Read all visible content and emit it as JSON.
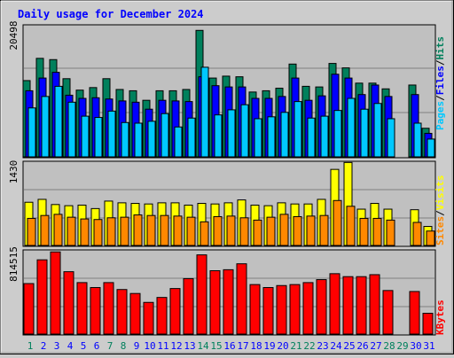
{
  "title": "Daily usage for December 2024",
  "colors": {
    "hits": "#00805c",
    "files": "#0000ff",
    "pages": "#00c8ff",
    "visits": "#ffff00",
    "sites": "#ff8800",
    "kbytes": "#ff0000",
    "weekend_label": "#00805c",
    "weekday_label": "#0000ff",
    "slash": "#000000"
  },
  "legend": {
    "pages": "Pages",
    "files": "Files",
    "hits": "Hits",
    "sites": "Sites",
    "visits": "Visits",
    "kbytes": "KBytes",
    "slash": "/"
  },
  "chart_data": [
    {
      "type": "bar",
      "title": "Daily usage for December 2024",
      "panel": "hits-files-pages",
      "max_label": "20498",
      "ylim": [
        0,
        20498
      ],
      "categories": [
        "1",
        "2",
        "3",
        "4",
        "5",
        "6",
        "7",
        "8",
        "9",
        "10",
        "11",
        "12",
        "13",
        "14",
        "15",
        "16",
        "17",
        "18",
        "19",
        "20",
        "21",
        "22",
        "23",
        "24",
        "25",
        "26",
        "27",
        "28",
        "29",
        "30",
        "31"
      ],
      "weekend": [
        1,
        7,
        8,
        14,
        15,
        21,
        22,
        28,
        29
      ],
      "series": [
        {
          "name": "Hits",
          "values": [
            12000,
            15500,
            15300,
            12300,
            10500,
            10900,
            12300,
            10600,
            10400,
            8900,
            10400,
            10400,
            10600,
            19900,
            12400,
            12700,
            12600,
            10200,
            10400,
            10800,
            14600,
            11100,
            11000,
            14700,
            14000,
            11600,
            11600,
            10700,
            0,
            11300,
            4500
          ]
        },
        {
          "name": "Files",
          "values": [
            10400,
            12400,
            13300,
            9700,
            9200,
            9300,
            9100,
            8800,
            8600,
            7500,
            8900,
            8800,
            8700,
            12600,
            11200,
            11000,
            11000,
            9200,
            9200,
            9500,
            12400,
            8900,
            9600,
            13000,
            12400,
            9800,
            11300,
            9500,
            0,
            9800,
            3700
          ]
        },
        {
          "name": "Pages",
          "values": [
            7700,
            9500,
            11100,
            8600,
            6400,
            6200,
            7200,
            5400,
            5300,
            5600,
            6800,
            4700,
            6100,
            14100,
            6600,
            7400,
            8200,
            6000,
            6300,
            7000,
            8700,
            6100,
            6400,
            7300,
            9200,
            7500,
            8400,
            6000,
            0,
            5300,
            2800
          ]
        }
      ]
    },
    {
      "type": "bar",
      "panel": "visits-sites",
      "max_label": "1430",
      "ylim": [
        0,
        1430
      ],
      "categories": [
        "1",
        "2",
        "3",
        "4",
        "5",
        "6",
        "7",
        "8",
        "9",
        "10",
        "11",
        "12",
        "13",
        "14",
        "15",
        "16",
        "17",
        "18",
        "19",
        "20",
        "21",
        "22",
        "23",
        "24",
        "25",
        "26",
        "27",
        "28",
        "29",
        "30",
        "31"
      ],
      "series": [
        {
          "name": "Visits",
          "values": [
            750,
            800,
            710,
            690,
            700,
            640,
            770,
            740,
            730,
            720,
            740,
            740,
            700,
            730,
            720,
            740,
            790,
            700,
            690,
            740,
            720,
            720,
            800,
            1320,
            1440,
            630,
            730,
            630,
            0,
            620,
            330
          ]
        },
        {
          "name": "Sites",
          "values": [
            470,
            520,
            540,
            490,
            460,
            450,
            480,
            490,
            530,
            520,
            520,
            510,
            490,
            410,
            500,
            510,
            480,
            440,
            490,
            540,
            500,
            510,
            520,
            780,
            680,
            470,
            470,
            440,
            0,
            400,
            250
          ]
        }
      ]
    },
    {
      "type": "bar",
      "panel": "kbytes",
      "max_label": "814515",
      "ylim": [
        0,
        814515
      ],
      "categories": [
        "1",
        "2",
        "3",
        "4",
        "5",
        "6",
        "7",
        "8",
        "9",
        "10",
        "11",
        "12",
        "13",
        "14",
        "15",
        "16",
        "17",
        "18",
        "19",
        "20",
        "21",
        "22",
        "23",
        "24",
        "25",
        "26",
        "27",
        "28",
        "29",
        "30",
        "31"
      ],
      "series": [
        {
          "name": "KBytes",
          "values": [
            510000,
            750000,
            830000,
            630000,
            520000,
            470000,
            520000,
            450000,
            410000,
            320000,
            370000,
            460000,
            560000,
            800000,
            640000,
            650000,
            710000,
            500000,
            470000,
            490000,
            500000,
            520000,
            550000,
            610000,
            580000,
            580000,
            600000,
            440000,
            0,
            430000,
            210000
          ]
        }
      ]
    }
  ]
}
